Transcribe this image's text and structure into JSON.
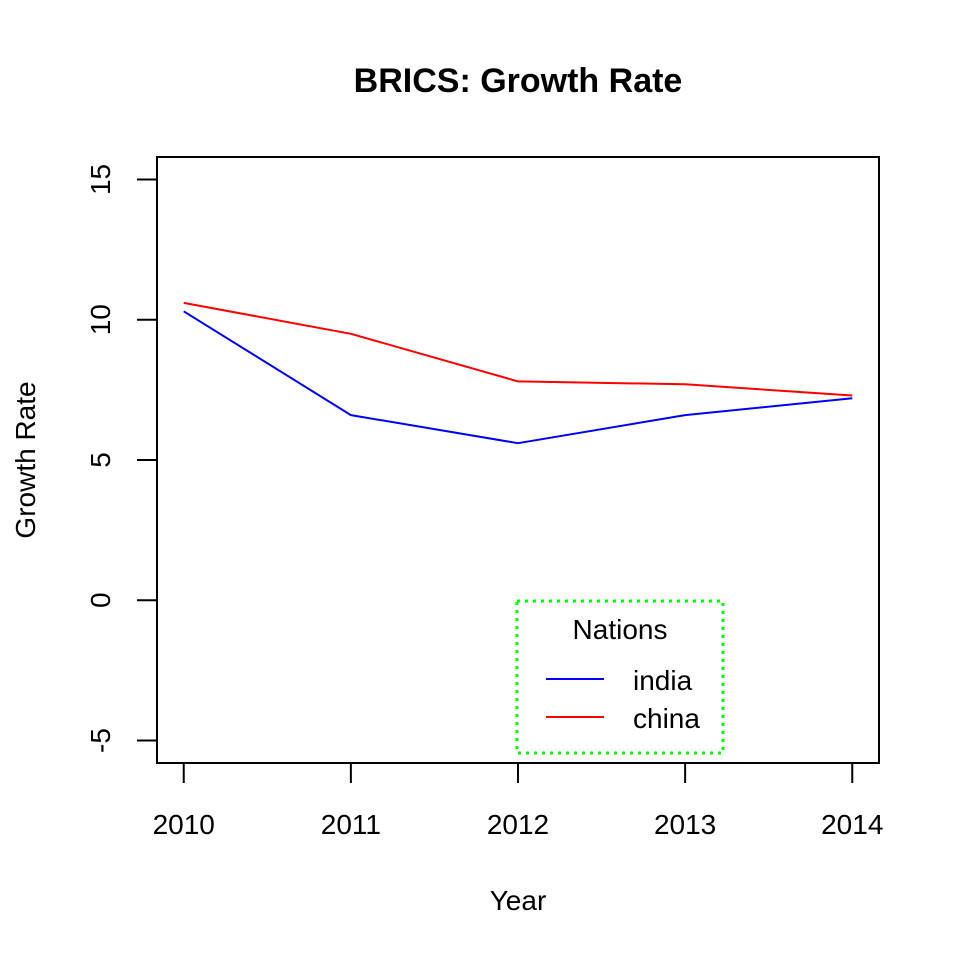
{
  "chart_data": {
    "type": "line",
    "title": "BRICS: Growth Rate",
    "xlabel": "Year",
    "ylabel": "Growth Rate",
    "x": [
      2010,
      2011,
      2012,
      2013,
      2014
    ],
    "xlim": [
      2009.84,
      2014.16
    ],
    "ylim": [
      -5.8,
      15.8
    ],
    "x_ticks": [
      2010,
      2011,
      2012,
      2013,
      2014
    ],
    "y_ticks": [
      -5,
      0,
      5,
      10,
      15
    ],
    "grid": false,
    "series": [
      {
        "name": "india",
        "color": "#0000ff",
        "values": [
          10.3,
          6.6,
          5.6,
          6.6,
          7.2
        ]
      },
      {
        "name": "china",
        "color": "#ff0000",
        "values": [
          10.6,
          9.5,
          7.8,
          7.7,
          7.3
        ]
      }
    ],
    "legend": {
      "title": "Nations",
      "placement": "bottom-right",
      "border_color": "#00ff00",
      "border_style": "dotted"
    }
  }
}
